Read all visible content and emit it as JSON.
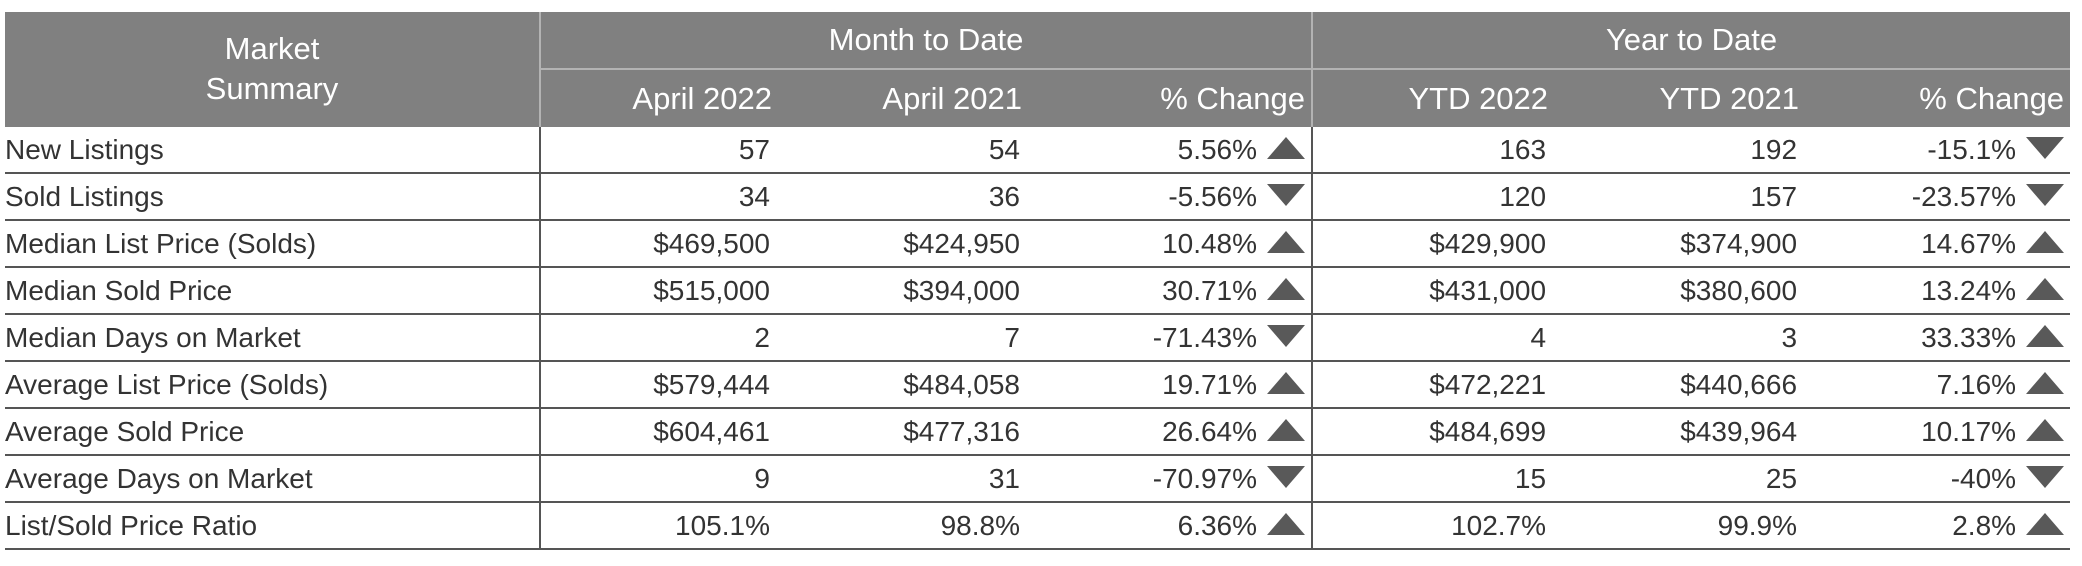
{
  "header": {
    "market_line1": "Market",
    "market_line2": "Summary",
    "month_group": "Month to Date",
    "year_group": "Year to Date",
    "columns": [
      "April 2022",
      "April 2021",
      "% Change",
      "YTD 2022",
      "YTD 2021",
      "% Change"
    ]
  },
  "colors": {
    "header_bg": "#808080",
    "header_text": "#ffffff",
    "arrow": "#595959"
  },
  "rows": [
    {
      "label": "New Listings",
      "mtd_2022": "57",
      "mtd_2021": "54",
      "mtd_change": "5.56%",
      "mtd_dir": "up-arrow-icon",
      "ytd_2022": "163",
      "ytd_2021": "192",
      "ytd_change": "-15.1%",
      "ytd_dir": "down-arrow-icon"
    },
    {
      "label": "Sold Listings",
      "mtd_2022": "34",
      "mtd_2021": "36",
      "mtd_change": "-5.56%",
      "mtd_dir": "down-arrow-icon",
      "ytd_2022": "120",
      "ytd_2021": "157",
      "ytd_change": "-23.57%",
      "ytd_dir": "down-arrow-icon"
    },
    {
      "label": "Median List Price (Solds)",
      "mtd_2022": "$469,500",
      "mtd_2021": "$424,950",
      "mtd_change": "10.48%",
      "mtd_dir": "up-arrow-icon",
      "ytd_2022": "$429,900",
      "ytd_2021": "$374,900",
      "ytd_change": "14.67%",
      "ytd_dir": "up-arrow-icon"
    },
    {
      "label": "Median Sold Price",
      "mtd_2022": "$515,000",
      "mtd_2021": "$394,000",
      "mtd_change": "30.71%",
      "mtd_dir": "up-arrow-icon",
      "ytd_2022": "$431,000",
      "ytd_2021": "$380,600",
      "ytd_change": "13.24%",
      "ytd_dir": "up-arrow-icon"
    },
    {
      "label": "Median Days on Market",
      "mtd_2022": "2",
      "mtd_2021": "7",
      "mtd_change": "-71.43%",
      "mtd_dir": "down-arrow-icon",
      "ytd_2022": "4",
      "ytd_2021": "3",
      "ytd_change": "33.33%",
      "ytd_dir": "up-arrow-icon"
    },
    {
      "label": "Average List Price (Solds)",
      "mtd_2022": "$579,444",
      "mtd_2021": "$484,058",
      "mtd_change": "19.71%",
      "mtd_dir": "up-arrow-icon",
      "ytd_2022": "$472,221",
      "ytd_2021": "$440,666",
      "ytd_change": "7.16%",
      "ytd_dir": "up-arrow-icon"
    },
    {
      "label": "Average Sold Price",
      "mtd_2022": "$604,461",
      "mtd_2021": "$477,316",
      "mtd_change": "26.64%",
      "mtd_dir": "up-arrow-icon",
      "ytd_2022": "$484,699",
      "ytd_2021": "$439,964",
      "ytd_change": "10.17%",
      "ytd_dir": "up-arrow-icon"
    },
    {
      "label": "Average Days on Market",
      "mtd_2022": "9",
      "mtd_2021": "31",
      "mtd_change": "-70.97%",
      "mtd_dir": "down-arrow-icon",
      "ytd_2022": "15",
      "ytd_2021": "25",
      "ytd_change": "-40%",
      "ytd_dir": "down-arrow-icon"
    },
    {
      "label": "List/Sold Price Ratio",
      "mtd_2022": "105.1%",
      "mtd_2021": "98.8%",
      "mtd_change": "6.36%",
      "mtd_dir": "up-arrow-icon",
      "ytd_2022": "102.7%",
      "ytd_2021": "99.9%",
      "ytd_change": "2.8%",
      "ytd_dir": "up-arrow-icon"
    }
  ]
}
